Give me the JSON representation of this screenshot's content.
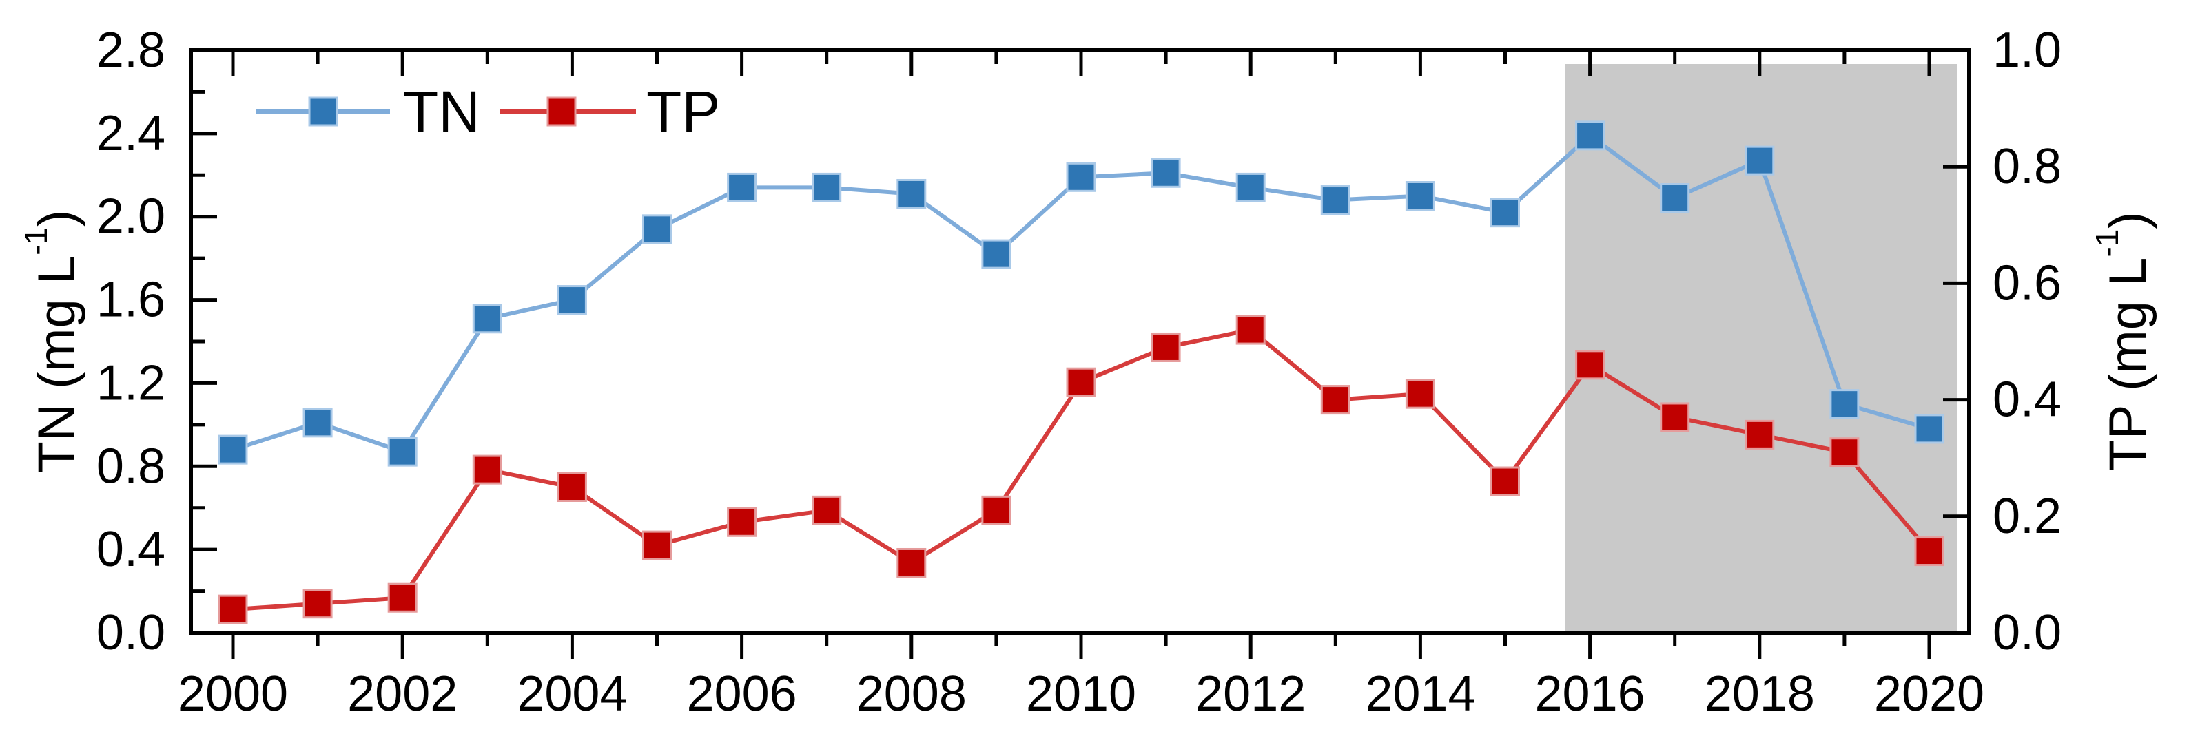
{
  "chart_data": {
    "type": "line",
    "title": "",
    "x": [
      2000,
      2001,
      2002,
      2003,
      2004,
      2005,
      2006,
      2007,
      2008,
      2009,
      2010,
      2011,
      2012,
      2013,
      2014,
      2015,
      2016,
      2017,
      2018,
      2019,
      2020
    ],
    "series": [
      {
        "name": "TN",
        "axis": "left",
        "values": [
          0.88,
          1.01,
          0.87,
          1.51,
          1.6,
          1.94,
          2.14,
          2.14,
          2.11,
          1.82,
          2.19,
          2.21,
          2.14,
          2.08,
          2.1,
          2.02,
          2.39,
          2.09,
          2.27,
          1.1,
          0.98
        ],
        "marker_color": "#2E76B4",
        "marker_edge_color": "#A9C9E8",
        "line_color": "#7FACDA"
      },
      {
        "name": "TP",
        "axis": "right",
        "values": [
          0.04,
          0.05,
          0.06,
          0.28,
          0.25,
          0.15,
          0.19,
          0.21,
          0.12,
          0.21,
          0.43,
          0.49,
          0.52,
          0.4,
          0.41,
          0.26,
          0.46,
          0.37,
          0.34,
          0.31,
          0.14
        ],
        "marker_color": "#C00000",
        "marker_edge_color": "#E59B9B",
        "line_color": "#D63C3C"
      }
    ],
    "left_axis": {
      "label_full": "TN (mg L⁻¹)",
      "label_pre": "TN (mg L",
      "label_sup": "-1",
      "label_post": ")",
      "min": 0.0,
      "max": 2.8,
      "major_step": 0.4,
      "minor_step": 0.2,
      "tick_labels": [
        "0.0",
        "0.4",
        "0.8",
        "1.2",
        "1.6",
        "2.0",
        "2.4",
        "2.8"
      ]
    },
    "right_axis": {
      "label_full": "TP (mg L⁻¹)",
      "label_pre": "TP (mg L",
      "label_sup": "-1",
      "label_post": ")",
      "min": 0.0,
      "max": 1.0,
      "major_step": 0.2,
      "minor_step": null,
      "tick_labels": [
        "0.0",
        "0.2",
        "0.4",
        "0.6",
        "0.8",
        "1.0"
      ]
    },
    "x_axis": {
      "min": 1999.5,
      "max": 2020.47,
      "major_step": 2,
      "minor_step": 1,
      "tick_labels": [
        "2000",
        "2002",
        "2004",
        "2006",
        "2008",
        "2010",
        "2012",
        "2014",
        "2016",
        "2018",
        "2020"
      ]
    },
    "highlight_region": {
      "x_start": 2015.71,
      "x_end": 2020.33,
      "color": "#C9C9C9"
    },
    "legend": {
      "items": [
        {
          "label": "TN"
        },
        {
          "label": "TP"
        }
      ]
    },
    "colors": {
      "axis": "#000000",
      "background": "#FFFFFF"
    },
    "grid": false,
    "legend_position": "top-left-inside",
    "ylim_left": [
      0,
      2.8
    ],
    "ylim_right": [
      0,
      1.0
    ]
  }
}
